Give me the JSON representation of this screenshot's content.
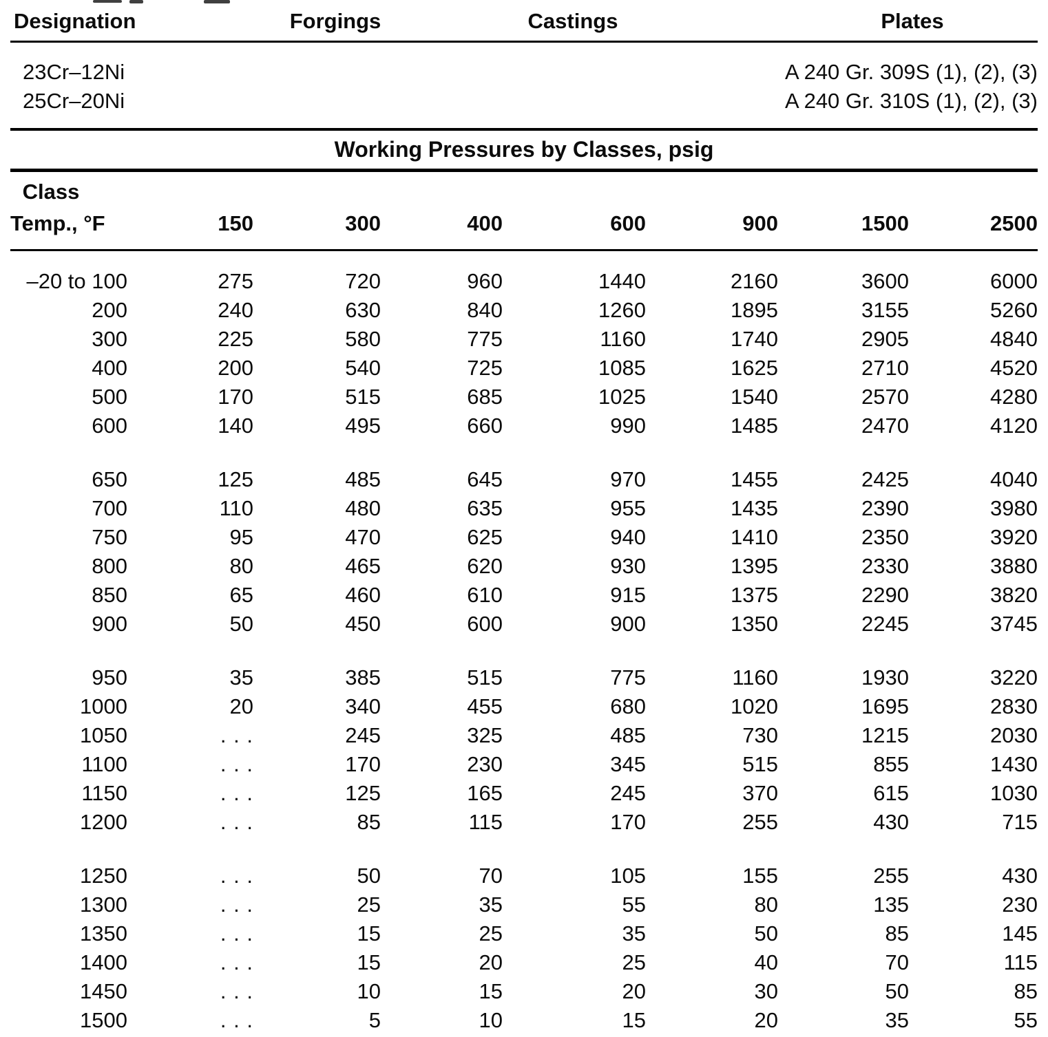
{
  "page": {
    "top_table": {
      "headers": {
        "designation": "Designation",
        "forgings": "Forgings",
        "castings": "Castings",
        "plates": "Plates"
      },
      "rows": [
        {
          "designation": "23Cr–12Ni",
          "plates_spec": "A 240 Gr. 309S (1), (2), (3)"
        },
        {
          "designation": "25Cr–20Ni",
          "plates_spec": "A 240 Gr. 310S (1), (2), (3)"
        }
      ]
    },
    "pressure_table": {
      "title": "Working Pressures by Classes, psig",
      "corner_header": {
        "line1": "Class",
        "line2": "Temp., °F"
      },
      "class_headers": [
        "150",
        "300",
        "400",
        "600",
        "900",
        "1500",
        "2500"
      ],
      "groups": [
        [
          {
            "temp": "–20 to 100",
            "values": [
              "275",
              "720",
              "960",
              "1440",
              "2160",
              "3600",
              "6000"
            ]
          },
          {
            "temp": "200",
            "values": [
              "240",
              "630",
              "840",
              "1260",
              "1895",
              "3155",
              "5260"
            ]
          },
          {
            "temp": "300",
            "values": [
              "225",
              "580",
              "775",
              "1160",
              "1740",
              "2905",
              "4840"
            ]
          },
          {
            "temp": "400",
            "values": [
              "200",
              "540",
              "725",
              "1085",
              "1625",
              "2710",
              "4520"
            ]
          },
          {
            "temp": "500",
            "values": [
              "170",
              "515",
              "685",
              "1025",
              "1540",
              "2570",
              "4280"
            ]
          },
          {
            "temp": "600",
            "values": [
              "140",
              "495",
              "660",
              "990",
              "1485",
              "2470",
              "4120"
            ]
          }
        ],
        [
          {
            "temp": "650",
            "values": [
              "125",
              "485",
              "645",
              "970",
              "1455",
              "2425",
              "4040"
            ]
          },
          {
            "temp": "700",
            "values": [
              "110",
              "480",
              "635",
              "955",
              "1435",
              "2390",
              "3980"
            ]
          },
          {
            "temp": "750",
            "values": [
              "95",
              "470",
              "625",
              "940",
              "1410",
              "2350",
              "3920"
            ]
          },
          {
            "temp": "800",
            "values": [
              "80",
              "465",
              "620",
              "930",
              "1395",
              "2330",
              "3880"
            ]
          },
          {
            "temp": "850",
            "values": [
              "65",
              "460",
              "610",
              "915",
              "1375",
              "2290",
              "3820"
            ]
          },
          {
            "temp": "900",
            "values": [
              "50",
              "450",
              "600",
              "900",
              "1350",
              "2245",
              "3745"
            ]
          }
        ],
        [
          {
            "temp": "950",
            "values": [
              "35",
              "385",
              "515",
              "775",
              "1160",
              "1930",
              "3220"
            ]
          },
          {
            "temp": "1000",
            "values": [
              "20",
              "340",
              "455",
              "680",
              "1020",
              "1695",
              "2830"
            ]
          },
          {
            "temp": "1050",
            "values": [
              ". . .",
              "245",
              "325",
              "485",
              "730",
              "1215",
              "2030"
            ]
          },
          {
            "temp": "1100",
            "values": [
              ". . .",
              "170",
              "230",
              "345",
              "515",
              "855",
              "1430"
            ]
          },
          {
            "temp": "1150",
            "values": [
              ". . .",
              "125",
              "165",
              "245",
              "370",
              "615",
              "1030"
            ]
          },
          {
            "temp": "1200",
            "values": [
              ". . .",
              "85",
              "115",
              "170",
              "255",
              "430",
              "715"
            ]
          }
        ],
        [
          {
            "temp": "1250",
            "values": [
              ". . .",
              "50",
              "70",
              "105",
              "155",
              "255",
              "430"
            ]
          },
          {
            "temp": "1300",
            "values": [
              ". . .",
              "25",
              "35",
              "55",
              "80",
              "135",
              "230"
            ]
          },
          {
            "temp": "1350",
            "values": [
              ". . .",
              "15",
              "25",
              "35",
              "50",
              "85",
              "145"
            ]
          },
          {
            "temp": "1400",
            "values": [
              ". . .",
              "15",
              "20",
              "25",
              "40",
              "70",
              "115"
            ]
          },
          {
            "temp": "1450",
            "values": [
              ". . .",
              "10",
              "15",
              "20",
              "30",
              "50",
              "85"
            ]
          },
          {
            "temp": "1500",
            "values": [
              ". . .",
              "5",
              "10",
              "15",
              "20",
              "35",
              "55"
            ]
          }
        ]
      ]
    }
  }
}
